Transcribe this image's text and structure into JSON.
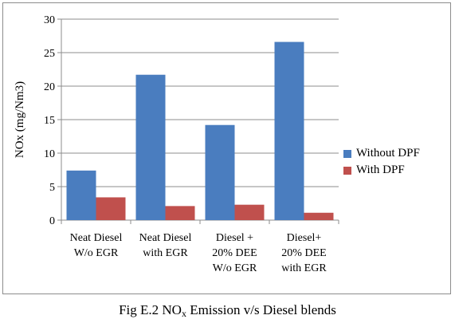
{
  "chart_data": {
    "type": "bar",
    "title": "",
    "xlabel": "",
    "ylabel": "NOx (mg/Nm3)",
    "ylim": [
      0,
      30
    ],
    "yticks": [
      0,
      5,
      10,
      15,
      20,
      25,
      30
    ],
    "grid": true,
    "legend_position": "right",
    "categories": [
      [
        "Neat Diesel",
        "W/o EGR"
      ],
      [
        "Neat Diesel",
        "with EGR"
      ],
      [
        "Diesel +",
        "20% DEE",
        "W/o EGR"
      ],
      [
        "Diesel+",
        "20% DEE",
        "with EGR"
      ]
    ],
    "series": [
      {
        "name": "Without DPF",
        "color": "#4a7dbf",
        "values": [
          7.4,
          21.7,
          14.2,
          26.6
        ]
      },
      {
        "name": "With DPF",
        "color": "#c0504d",
        "values": [
          3.4,
          2.1,
          2.3,
          1.1
        ]
      }
    ]
  },
  "caption": {
    "prefix": "Fig E.2 NO",
    "subscript": "x",
    "suffix": " Emission v/s Diesel blends"
  }
}
